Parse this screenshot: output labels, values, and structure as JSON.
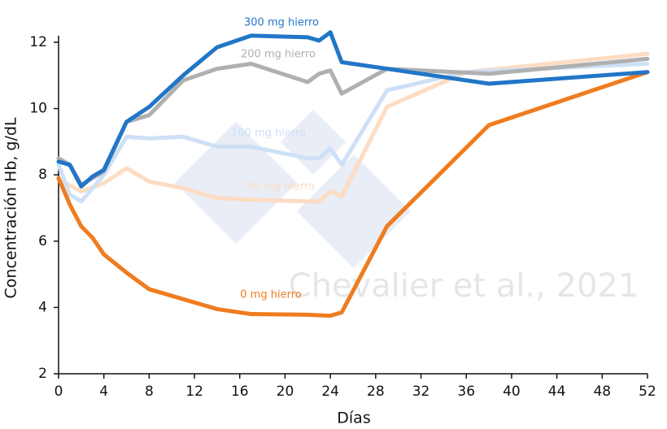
{
  "chart_data": {
    "type": "line",
    "xlabel": "Días",
    "ylabel": "Concentración Hb, g/dL",
    "credit": "Chevalier et al., 2021",
    "xlim": [
      0,
      52
    ],
    "xticks": [
      0,
      4,
      8,
      12,
      16,
      20,
      24,
      28,
      32,
      36,
      40,
      44,
      48,
      52
    ],
    "ylim": [
      2,
      12
    ],
    "yticks": [
      2,
      4,
      6,
      8,
      10,
      12
    ],
    "series": [
      {
        "name": "50 mg hierro",
        "color": "#fddcc2",
        "x": [
          0,
          2,
          4,
          6,
          8,
          11,
          14,
          17,
          22,
          23,
          24,
          25,
          29,
          36,
          52
        ],
        "values": [
          7.85,
          7.5,
          7.75,
          8.2,
          7.8,
          7.6,
          7.3,
          7.25,
          7.2,
          7.2,
          7.5,
          7.35,
          10.05,
          11.1,
          11.65
        ]
      },
      {
        "name": "100 mg hierro",
        "color": "#cde0f5",
        "x": [
          0,
          1,
          2,
          4,
          6,
          8,
          11,
          14,
          17,
          22,
          23,
          24,
          25,
          29,
          36,
          52
        ],
        "values": [
          8.3,
          7.4,
          7.2,
          8.0,
          9.15,
          9.1,
          9.15,
          8.85,
          8.85,
          8.5,
          8.5,
          8.8,
          8.3,
          10.55,
          11.1,
          11.35
        ]
      },
      {
        "name": "200 mg hierro",
        "color": "#b0b0b0",
        "x": [
          0,
          1,
          2,
          3,
          4,
          6,
          8,
          11,
          14,
          17,
          22,
          23,
          24,
          25,
          29,
          38,
          52
        ],
        "values": [
          8.5,
          8.3,
          7.7,
          7.9,
          8.1,
          9.6,
          9.8,
          10.85,
          11.2,
          11.35,
          10.8,
          11.05,
          11.15,
          10.45,
          11.2,
          11.05,
          11.5
        ]
      },
      {
        "name": "0 mg hierro",
        "color": "#ef7c1f",
        "x": [
          0,
          1,
          2,
          3,
          4,
          6,
          8,
          11,
          14,
          17,
          22,
          24,
          25,
          29,
          38,
          52
        ],
        "values": [
          7.9,
          7.1,
          6.45,
          6.1,
          5.6,
          5.05,
          4.55,
          4.25,
          3.95,
          3.8,
          3.78,
          3.75,
          3.85,
          6.45,
          9.5,
          11.1
        ]
      },
      {
        "name": "300 mg hierro",
        "color": "#2176c7",
        "x": [
          0,
          1,
          2,
          3,
          4,
          6,
          8,
          11,
          14,
          17,
          22,
          23,
          24,
          25,
          38,
          52
        ],
        "values": [
          8.4,
          8.3,
          7.65,
          7.95,
          8.15,
          9.6,
          10.05,
          11.0,
          11.85,
          12.2,
          12.15,
          12.05,
          12.3,
          11.4,
          10.75,
          11.1
        ]
      }
    ]
  }
}
